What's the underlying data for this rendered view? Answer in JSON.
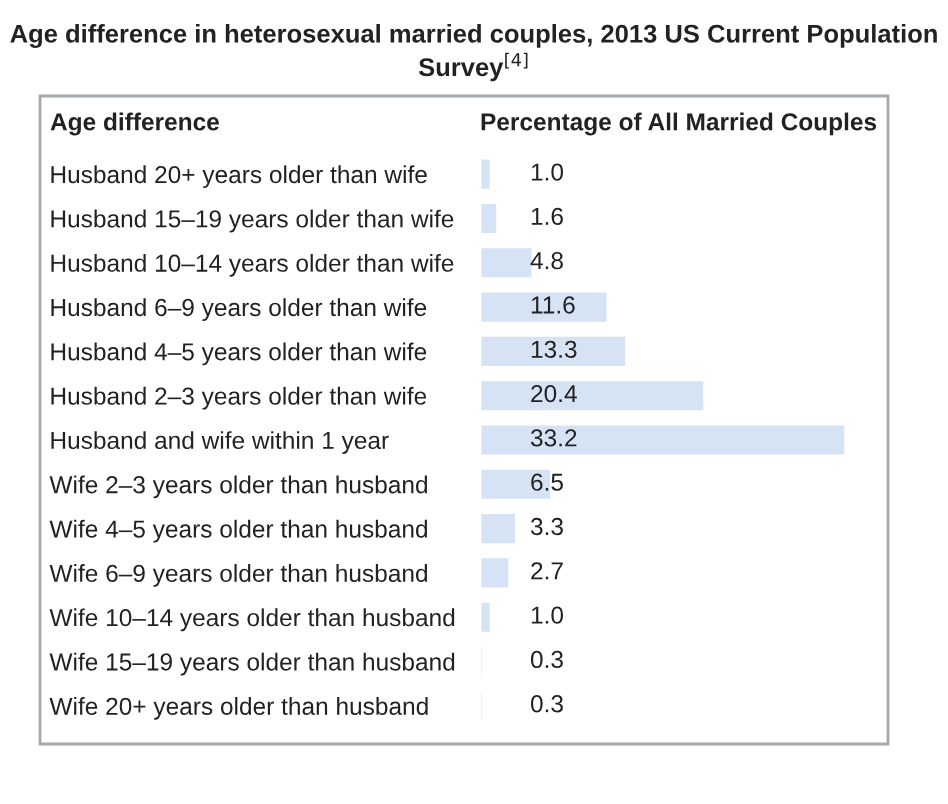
{
  "chart_data": {
    "type": "bar",
    "orientation": "horizontal",
    "title": "Age difference in heterosexual married couples, 2013 US Current Population Survey$^{[4]}$",
    "ylabel": "Age difference",
    "xlabel": "Percentage of All Married Couples",
    "categories": [
      "Husband 20+ years older than wife",
      "Husband 15–19 years older than wife",
      "Husband 10–14 years older than wife",
      "Husband 6–9 years older than wife",
      "Husband 4–5 years older than wife",
      "Husband 2–3 years older than wife",
      "Husband and wife within 1 year",
      "Wife 2–3 years older than husband",
      "Wife 4–5 years older than husband",
      "Wife 6–9 years older than husband",
      "Wife 10–14 years older than husband",
      "Wife 15–19 years older than husband",
      "Wife 20+ years older than husband"
    ],
    "values": [
      1.0,
      1.6,
      4.8,
      11.6,
      13.3,
      20.4,
      33.2,
      6.5,
      3.3,
      2.7,
      1.0,
      0.3,
      0.3
    ],
    "value_labels": [
      "1.0",
      "1.6",
      "4.8",
      "11.6",
      "13.3",
      "20.4",
      "33.2",
      "6.5",
      "3.3",
      "2.7",
      "1.0",
      "0.3",
      "0.3"
    ],
    "color": "#d5e3f5",
    "grid": false,
    "legend": false
  }
}
